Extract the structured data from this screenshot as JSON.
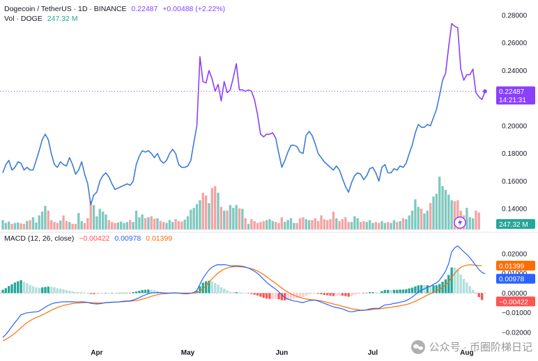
{
  "header": {
    "symbol": "Dogecoin / TetherUS · 1D · BINANCE",
    "price": "0.22487",
    "change": "+0.00488 (+2.22%)",
    "vol_label": "Vol · DOGE",
    "vol_value": "247.32 M"
  },
  "macd_legend": {
    "label": "MACD (12, 26, close)",
    "hist": "−0.00422",
    "macd": "0.00978",
    "signal": "0.01399"
  },
  "price_tag": {
    "value": "0.22487",
    "countdown": "14:21:31"
  },
  "vol_tag": "247.32 M",
  "macd_tags": {
    "signal": "0.01399",
    "macd": "0.00978",
    "hist": "−0.00422"
  },
  "watermark": "公众号 · 币圈阶梯日记",
  "colors": {
    "price_up": "#3a7bd5",
    "price_purple": "#8a3ffc",
    "vol_up": "#7fc8bf",
    "vol_down": "#f4a3a3",
    "macd_line": "#2962ff",
    "signal_line": "#ff6d00",
    "hist_up_strong": "#26a69a",
    "hist_up_weak": "#b2dfdb",
    "hist_down_strong": "#ff5252",
    "hist_down_weak": "#ffcdd2"
  },
  "chart_data": {
    "type": "line",
    "price_axis": {
      "ylim": [
        0.125,
        0.287
      ],
      "ticks": [
        "0.28000",
        "0.26000",
        "0.24000",
        "0.22000",
        "0.20000",
        "0.18000",
        "0.16000",
        "0.14000"
      ]
    },
    "macd_axis": {
      "ylim": [
        -0.026,
        0.027
      ],
      "ticks": [
        "0.02000",
        "0.01000",
        "0.00000",
        "−0.01000",
        "−0.02000"
      ]
    },
    "x_labels": [
      {
        "label": "Apr",
        "index": 31
      },
      {
        "label": "May",
        "index": 61
      },
      {
        "label": "Jun",
        "index": 92
      },
      {
        "label": "Jul",
        "index": 122
      },
      {
        "label": "Aug",
        "index": 153
      }
    ],
    "price": [
      0.166,
      0.172,
      0.175,
      0.168,
      0.17,
      0.174,
      0.173,
      0.168,
      0.17,
      0.168,
      0.168,
      0.175,
      0.182,
      0.19,
      0.194,
      0.19,
      0.18,
      0.172,
      0.17,
      0.174,
      0.172,
      0.171,
      0.177,
      0.172,
      0.165,
      0.168,
      0.174,
      0.165,
      0.158,
      0.143,
      0.15,
      0.152,
      0.16,
      0.164,
      0.166,
      0.163,
      0.158,
      0.154,
      0.155,
      0.156,
      0.157,
      0.158,
      0.157,
      0.16,
      0.172,
      0.178,
      0.182,
      0.181,
      0.182,
      0.18,
      0.177,
      0.18,
      0.175,
      0.173,
      0.175,
      0.18,
      0.183,
      0.18,
      0.172,
      0.17,
      0.17,
      0.171,
      0.175,
      0.188,
      0.2,
      0.25,
      0.232,
      0.231,
      0.24,
      0.234,
      0.225,
      0.23,
      0.218,
      0.232,
      0.224,
      0.226,
      0.235,
      0.245,
      0.226,
      0.226,
      0.225,
      0.226,
      0.225,
      0.219,
      0.208,
      0.194,
      0.192,
      0.194,
      0.194,
      0.195,
      0.191,
      0.18,
      0.17,
      0.175,
      0.181,
      0.186,
      0.186,
      0.185,
      0.181,
      0.18,
      0.193,
      0.196,
      0.193,
      0.187,
      0.18,
      0.177,
      0.174,
      0.172,
      0.17,
      0.168,
      0.171,
      0.168,
      0.162,
      0.156,
      0.152,
      0.159,
      0.164,
      0.166,
      0.165,
      0.161,
      0.164,
      0.169,
      0.17,
      0.166,
      0.16,
      0.17,
      0.172,
      0.166,
      0.166,
      0.169,
      0.168,
      0.171,
      0.17,
      0.173,
      0.18,
      0.186,
      0.195,
      0.201,
      0.199,
      0.199,
      0.201,
      0.2,
      0.206,
      0.212,
      0.222,
      0.233,
      0.238,
      0.257,
      0.274,
      0.272,
      0.271,
      0.241,
      0.233,
      0.237,
      0.237,
      0.241,
      0.224,
      0.221,
      0.219,
      0.225
    ],
    "volume_ylim": [
      0,
      140
    ],
    "volume": [
      20,
      14,
      17,
      12,
      14,
      15,
      13,
      12,
      18,
      20,
      26,
      15,
      30,
      38,
      50,
      40,
      20,
      16,
      14,
      19,
      30,
      18,
      16,
      12,
      12,
      35,
      18,
      14,
      24,
      60,
      52,
      28,
      44,
      38,
      32,
      20,
      16,
      14,
      15,
      17,
      14,
      16,
      20,
      16,
      40,
      26,
      32,
      24,
      26,
      28,
      23,
      24,
      18,
      16,
      14,
      20,
      16,
      22,
      18,
      17,
      21,
      28,
      42,
      46,
      54,
      62,
      78,
      72,
      56,
      88,
      92,
      78,
      48,
      40,
      40,
      52,
      46,
      52,
      45,
      44,
      24,
      12,
      22,
      18,
      14,
      16,
      18,
      20,
      22,
      18,
      16,
      14,
      26,
      16,
      20,
      24,
      14,
      14,
      24,
      26,
      22,
      20,
      20,
      24,
      18,
      30,
      22,
      20,
      22,
      38,
      24,
      18,
      22,
      26,
      16,
      16,
      28,
      24,
      16,
      18,
      16,
      20,
      14,
      16,
      14,
      18,
      14,
      16,
      14,
      20,
      16,
      18,
      24,
      22,
      30,
      40,
      64,
      48,
      44,
      34,
      40,
      56,
      70,
      76,
      112,
      92,
      84,
      74,
      62,
      60,
      62,
      40,
      30,
      46,
      26,
      24,
      40,
      36
    ],
    "macd": [
      -0.0225,
      -0.021,
      -0.019,
      -0.017,
      -0.015,
      -0.013,
      -0.011,
      -0.0105,
      -0.01,
      -0.0098,
      -0.0096,
      -0.0095,
      -0.0091,
      -0.0082,
      -0.0072,
      -0.0062,
      -0.0055,
      -0.005,
      -0.0048,
      -0.0045,
      -0.0044,
      -0.0044,
      -0.0044,
      -0.0044,
      -0.0045,
      -0.0045,
      -0.0044,
      -0.0045,
      -0.0047,
      -0.0052,
      -0.0054,
      -0.0055,
      -0.0054,
      -0.0051,
      -0.0048,
      -0.0047,
      -0.0046,
      -0.0046,
      -0.0045,
      -0.0043,
      -0.0041,
      -0.004,
      -0.0039,
      -0.0035,
      -0.003,
      -0.0023,
      -0.0015,
      -0.0009,
      -0.0003,
      0.0001,
      0.0002,
      0.0003,
      0.0002,
      0.0001,
      0.0,
      0.0,
      0.0001,
      0.0001,
      0.0,
      -0.0002,
      -0.0003,
      -0.0003,
      -0.0001,
      0.0004,
      0.0013,
      0.0045,
      0.0075,
      0.0098,
      0.0118,
      0.0132,
      0.014,
      0.0145,
      0.0143,
      0.0145,
      0.0142,
      0.0139,
      0.0138,
      0.014,
      0.0138,
      0.0136,
      0.0133,
      0.0127,
      0.012,
      0.0111,
      0.01,
      0.0086,
      0.007,
      0.0055,
      0.0042,
      0.0031,
      0.002,
      0.0006,
      -0.001,
      -0.0022,
      -0.003,
      -0.0036,
      -0.004,
      -0.0042,
      -0.0046,
      -0.0048,
      -0.0043,
      -0.0038,
      -0.0036,
      -0.0036,
      -0.004,
      -0.0046,
      -0.0052,
      -0.0058,
      -0.0064,
      -0.007,
      -0.0073,
      -0.0076,
      -0.008,
      -0.0086,
      -0.0093,
      -0.0095,
      -0.0092,
      -0.0089,
      -0.0088,
      -0.0088,
      -0.0084,
      -0.008,
      -0.0078,
      -0.0077,
      -0.0078,
      -0.0068,
      -0.006,
      -0.0058,
      -0.0056,
      -0.0052,
      -0.005,
      -0.0046,
      -0.0043,
      -0.0038,
      -0.003,
      -0.002,
      -0.0008,
      0.0005,
      0.0015,
      0.0022,
      0.003,
      0.0035,
      0.0045,
      0.0052,
      0.0066,
      0.0088,
      0.0112,
      0.015,
      0.021,
      0.023,
      0.024,
      0.0225,
      0.021,
      0.0196,
      0.018,
      0.016,
      0.014,
      0.012,
      0.0105,
      0.0098
    ],
    "signal": [
      -0.0242,
      -0.0235,
      -0.0226,
      -0.0215,
      -0.0204,
      -0.019,
      -0.0176,
      -0.0162,
      -0.015,
      -0.014,
      -0.0131,
      -0.0124,
      -0.0118,
      -0.0111,
      -0.0103,
      -0.0095,
      -0.0087,
      -0.008,
      -0.0073,
      -0.0068,
      -0.0063,
      -0.0059,
      -0.0056,
      -0.0053,
      -0.0051,
      -0.005,
      -0.0049,
      -0.0048,
      -0.0048,
      -0.0048,
      -0.0049,
      -0.005,
      -0.005,
      -0.005,
      -0.0049,
      -0.0048,
      -0.0047,
      -0.0046,
      -0.0045,
      -0.0044,
      -0.0043,
      -0.0042,
      -0.0041,
      -0.004,
      -0.0038,
      -0.0035,
      -0.0031,
      -0.0026,
      -0.0021,
      -0.0016,
      -0.0012,
      -0.0008,
      -0.0005,
      -0.0003,
      -0.0002,
      -0.0001,
      0.0,
      0.0,
      0.0,
      0.0,
      0.0,
      0.0,
      0.0,
      0.0,
      0.0002,
      0.001,
      0.0022,
      0.0038,
      0.0055,
      0.0072,
      0.0088,
      0.0102,
      0.0113,
      0.0122,
      0.0128,
      0.0132,
      0.0134,
      0.0135,
      0.0134,
      0.0133,
      0.0131,
      0.0128,
      0.0124,
      0.0119,
      0.0112,
      0.0104,
      0.0094,
      0.0083,
      0.0071,
      0.006,
      0.0049,
      0.0037,
      0.0026,
      0.0015,
      0.0005,
      -0.0004,
      -0.0011,
      -0.0017,
      -0.0022,
      -0.0027,
      -0.003,
      -0.0032,
      -0.0034,
      -0.0035,
      -0.0037,
      -0.004,
      -0.0043,
      -0.0047,
      -0.0051,
      -0.0055,
      -0.0059,
      -0.0063,
      -0.0067,
      -0.0071,
      -0.0075,
      -0.0079,
      -0.0082,
      -0.0084,
      -0.0086,
      -0.0086,
      -0.0086,
      -0.0085,
      -0.0083,
      -0.0081,
      -0.008,
      -0.0078,
      -0.0076,
      -0.0074,
      -0.0072,
      -0.0069,
      -0.0067,
      -0.0064,
      -0.0061,
      -0.0058,
      -0.0054,
      -0.0048,
      -0.0042,
      -0.0034,
      -0.0026,
      -0.0018,
      -0.001,
      -0.0003,
      0.0005,
      0.0012,
      0.002,
      0.003,
      0.0042,
      0.0058,
      0.008,
      0.01,
      0.0118,
      0.013,
      0.0138,
      0.0142,
      0.0144,
      0.0143,
      0.0141,
      0.014,
      0.014
    ]
  }
}
